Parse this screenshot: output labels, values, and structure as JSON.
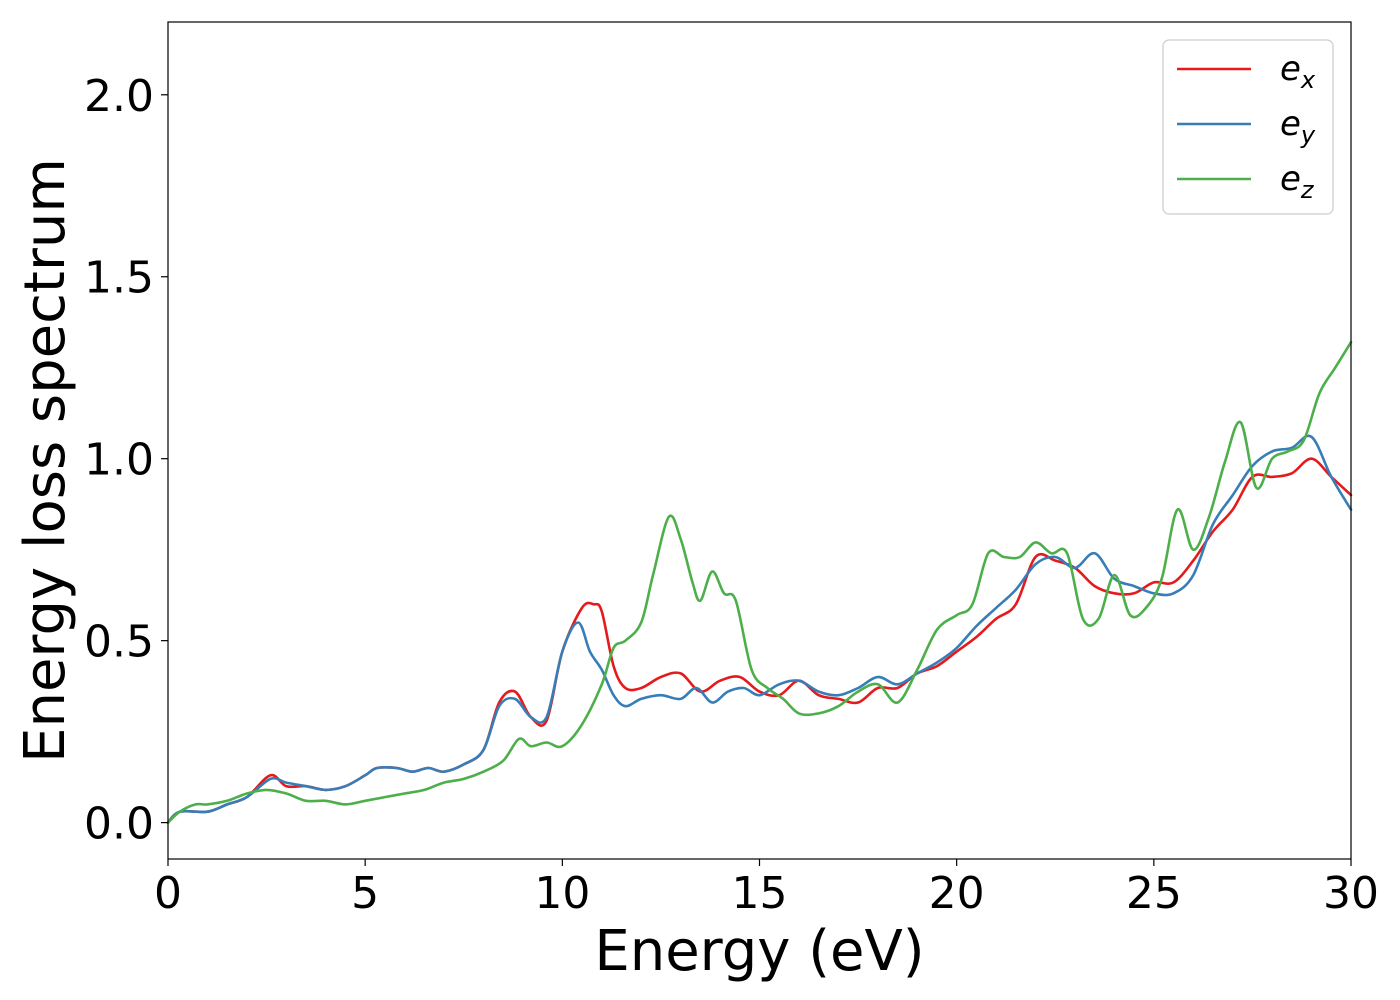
{
  "chart_data": {
    "type": "line",
    "title": "",
    "xlabel": "Energy (eV)",
    "ylabel": "Energy loss spectrum",
    "xlim": [
      0,
      30
    ],
    "ylim": [
      -0.1,
      2.2
    ],
    "xticks": [
      0,
      5,
      10,
      15,
      20,
      25,
      30
    ],
    "xtick_labels": [
      "0",
      "5",
      "10",
      "15",
      "20",
      "25",
      "30"
    ],
    "yticks": [
      0.0,
      0.5,
      1.0,
      1.5,
      2.0
    ],
    "ytick_labels": [
      "0.0",
      "0.5",
      "1.0",
      "1.5",
      "2.0"
    ],
    "grid": false,
    "legend_position": "top-right",
    "series": [
      {
        "name": "e",
        "subscript": "x",
        "color": "#e41a1c",
        "x": [
          0,
          0.3,
          1.0,
          1.5,
          2.0,
          2.6,
          3.0,
          3.5,
          4.0,
          4.5,
          5.0,
          5.3,
          5.8,
          6.2,
          6.6,
          7.0,
          7.5,
          8.0,
          8.4,
          8.8,
          9.2,
          9.6,
          10.0,
          10.5,
          10.8,
          11.0,
          11.3,
          11.6,
          12.0,
          12.5,
          13.0,
          13.5,
          14.0,
          14.5,
          15.0,
          15.5,
          16.0,
          16.5,
          17.0,
          17.5,
          18.0,
          18.5,
          19.0,
          19.5,
          20.0,
          20.5,
          21.0,
          21.5,
          22.0,
          22.5,
          23.0,
          23.5,
          24.0,
          24.5,
          25.0,
          25.5,
          26.0,
          26.5,
          27.0,
          27.5,
          28.0,
          28.5,
          29.0,
          29.5,
          30.0
        ],
        "values": [
          0.0,
          0.03,
          0.03,
          0.05,
          0.07,
          0.13,
          0.1,
          0.1,
          0.09,
          0.1,
          0.13,
          0.15,
          0.15,
          0.14,
          0.15,
          0.14,
          0.16,
          0.2,
          0.33,
          0.36,
          0.29,
          0.28,
          0.47,
          0.59,
          0.6,
          0.58,
          0.43,
          0.37,
          0.37,
          0.4,
          0.41,
          0.36,
          0.39,
          0.4,
          0.36,
          0.35,
          0.39,
          0.35,
          0.34,
          0.33,
          0.37,
          0.37,
          0.41,
          0.43,
          0.47,
          0.51,
          0.56,
          0.6,
          0.73,
          0.72,
          0.7,
          0.65,
          0.63,
          0.63,
          0.66,
          0.66,
          0.72,
          0.8,
          0.86,
          0.95,
          0.95,
          0.96,
          1.0,
          0.95,
          0.9
        ]
      },
      {
        "name": "e",
        "subscript": "y",
        "color": "#377eb8",
        "x": [
          0,
          0.3,
          1.0,
          1.5,
          2.0,
          2.6,
          3.0,
          3.5,
          4.0,
          4.5,
          5.0,
          5.3,
          5.8,
          6.2,
          6.6,
          7.0,
          7.5,
          8.0,
          8.4,
          8.8,
          9.2,
          9.6,
          10.0,
          10.4,
          10.7,
          11.0,
          11.3,
          11.6,
          12.0,
          12.5,
          13.0,
          13.4,
          13.8,
          14.2,
          14.6,
          15.0,
          15.5,
          16.0,
          16.5,
          17.0,
          17.5,
          18.0,
          18.5,
          19.0,
          19.5,
          20.0,
          20.5,
          21.0,
          21.5,
          22.0,
          22.5,
          23.0,
          23.5,
          24.0,
          24.5,
          25.0,
          25.5,
          26.0,
          26.5,
          27.0,
          27.5,
          28.0,
          28.5,
          29.0,
          29.5,
          30.0
        ],
        "values": [
          0.0,
          0.03,
          0.03,
          0.05,
          0.07,
          0.12,
          0.11,
          0.1,
          0.09,
          0.1,
          0.13,
          0.15,
          0.15,
          0.14,
          0.15,
          0.14,
          0.16,
          0.2,
          0.32,
          0.34,
          0.29,
          0.29,
          0.47,
          0.55,
          0.47,
          0.42,
          0.35,
          0.32,
          0.34,
          0.35,
          0.34,
          0.37,
          0.33,
          0.36,
          0.37,
          0.35,
          0.38,
          0.39,
          0.36,
          0.35,
          0.37,
          0.4,
          0.38,
          0.41,
          0.44,
          0.48,
          0.54,
          0.59,
          0.64,
          0.71,
          0.73,
          0.7,
          0.74,
          0.67,
          0.65,
          0.63,
          0.63,
          0.68,
          0.82,
          0.9,
          0.98,
          1.02,
          1.03,
          1.06,
          0.95,
          0.86
        ]
      },
      {
        "name": "e",
        "subscript": "z",
        "color": "#4daf4a",
        "x": [
          0,
          0.3,
          0.7,
          1.0,
          1.5,
          2.0,
          2.5,
          3.0,
          3.5,
          4.0,
          4.5,
          5.0,
          5.5,
          6.0,
          6.5,
          7.0,
          7.5,
          8.0,
          8.5,
          8.9,
          9.2,
          9.6,
          10.0,
          10.5,
          11.0,
          11.3,
          11.6,
          12.0,
          12.3,
          12.7,
          13.0,
          13.3,
          13.5,
          13.8,
          14.1,
          14.4,
          14.8,
          15.2,
          15.6,
          16.0,
          16.5,
          17.0,
          17.5,
          18.0,
          18.5,
          19.0,
          19.5,
          20.0,
          20.4,
          20.8,
          21.2,
          21.6,
          22.0,
          22.4,
          22.8,
          23.2,
          23.6,
          24.0,
          24.4,
          24.8,
          25.2,
          25.6,
          26.0,
          26.4,
          26.8,
          27.2,
          27.6,
          28.0,
          28.4,
          28.8,
          29.2,
          29.6,
          30.0
        ],
        "values": [
          0.0,
          0.03,
          0.05,
          0.05,
          0.06,
          0.08,
          0.09,
          0.08,
          0.06,
          0.06,
          0.05,
          0.06,
          0.07,
          0.08,
          0.09,
          0.11,
          0.12,
          0.14,
          0.17,
          0.23,
          0.21,
          0.22,
          0.21,
          0.27,
          0.38,
          0.48,
          0.5,
          0.55,
          0.68,
          0.84,
          0.78,
          0.66,
          0.61,
          0.69,
          0.63,
          0.61,
          0.42,
          0.37,
          0.34,
          0.3,
          0.3,
          0.32,
          0.36,
          0.38,
          0.33,
          0.42,
          0.53,
          0.57,
          0.6,
          0.74,
          0.73,
          0.73,
          0.77,
          0.74,
          0.74,
          0.56,
          0.56,
          0.68,
          0.57,
          0.59,
          0.67,
          0.86,
          0.75,
          0.84,
          0.99,
          1.1,
          0.92,
          1.0,
          1.02,
          1.05,
          1.18,
          1.25,
          1.32
        ]
      }
    ]
  }
}
